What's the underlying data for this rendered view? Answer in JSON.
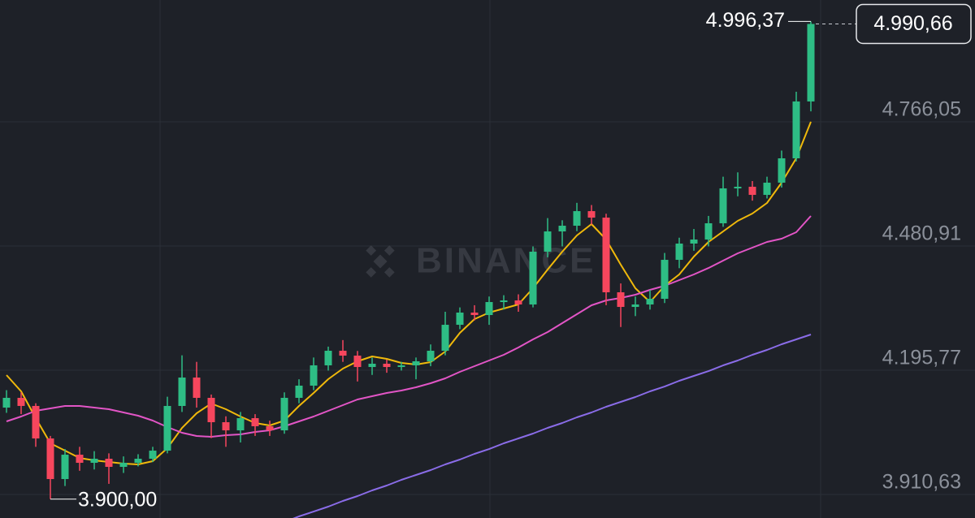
{
  "chart_data": {
    "type": "candlestick",
    "watermark": "BINANCE",
    "up_color": "#2ebd85",
    "down_color": "#f6465d",
    "open": [
      4110.0,
      4132.4,
      4113.8,
      4039.2,
      3946.0,
      4001.9,
      3983.3,
      3992.6,
      3974.0,
      3983.3,
      3992.6,
      4011.2,
      4113.8,
      4179.0,
      4132.4,
      4076.5,
      4057.8,
      4085.8,
      4067.2,
      4057.8,
      4132.4,
      4160.4,
      4207.0,
      4240.5,
      4229.3,
      4203.2,
      4210.7,
      4203.2,
      4207.0,
      4216.3,
      4240.5,
      4300.1,
      4328.1,
      4322.5,
      4352.3,
      4356.0,
      4346.7,
      4467.9,
      4514.4,
      4527.5,
      4561.0,
      4546.1,
      4374.7,
      4341.1,
      4346.7,
      4359.8,
      4449.2,
      4486.5,
      4495.8,
      4533.1,
      4613.2,
      4616.9,
      4598.3,
      4626.3,
      4682.2,
      4812.7
    ],
    "high": [
      4150.0,
      4145.0,
      4120.0,
      4045.0,
      4015.0,
      4020.0,
      4010.0,
      4005.0,
      3998.0,
      4003.0,
      4020.0,
      4135.0,
      4230.0,
      4215.0,
      4140.0,
      4090.0,
      4100.0,
      4095.0,
      4080.0,
      4145.0,
      4175.0,
      4225.0,
      4250.0,
      4265.0,
      4240.0,
      4225.0,
      4220.0,
      4215.0,
      4225.0,
      4255.0,
      4330.0,
      4340.0,
      4345.0,
      4365.0,
      4368.0,
      4370.0,
      4480.0,
      4545.0,
      4540.0,
      4580.0,
      4575.0,
      4555.0,
      4395.0,
      4365.0,
      4380.0,
      4465.0,
      4500.0,
      4520.0,
      4550.0,
      4640.0,
      4650.0,
      4630.0,
      4640.0,
      4700.0,
      4835.0,
      4996.37
    ],
    "low": [
      4098.0,
      4095.0,
      4020.0,
      3900.0,
      3930.0,
      3965.0,
      3968.0,
      3935.0,
      3960.0,
      3975.0,
      3985.0,
      4005.0,
      4100.0,
      4110.0,
      4040.0,
      4020.0,
      4030.0,
      4045.0,
      4045.0,
      4050.0,
      4120.0,
      4150.0,
      4195.0,
      4215.0,
      4170.0,
      4185.0,
      4190.0,
      4195.0,
      4175.0,
      4205.0,
      4230.0,
      4290.0,
      4310.0,
      4300.0,
      4335.0,
      4330.0,
      4340.0,
      4455.0,
      4480.0,
      4515.0,
      4530.0,
      4345.0,
      4295.0,
      4320.0,
      4335.0,
      4350.0,
      4430.0,
      4470.0,
      4480.0,
      4525.0,
      4595.0,
      4585.0,
      4590.0,
      4615.0,
      4675.0,
      4790.0
    ],
    "close": [
      4132.4,
      4113.8,
      4039.2,
      3946.0,
      4001.9,
      3983.3,
      3992.6,
      3974.0,
      3983.3,
      3992.6,
      4011.2,
      4113.8,
      4179.0,
      4132.4,
      4076.5,
      4057.8,
      4085.8,
      4067.2,
      4057.8,
      4132.4,
      4160.4,
      4207.0,
      4240.5,
      4229.3,
      4203.2,
      4210.7,
      4203.2,
      4207.0,
      4216.3,
      4240.5,
      4300.1,
      4328.1,
      4322.5,
      4352.3,
      4356.0,
      4346.7,
      4467.9,
      4514.4,
      4527.5,
      4561.0,
      4546.1,
      4374.7,
      4341.1,
      4346.7,
      4359.8,
      4449.2,
      4486.5,
      4495.8,
      4533.1,
      4613.2,
      4616.9,
      4598.3,
      4626.3,
      4682.2,
      4812.7,
      4990.66
    ],
    "series": [
      {
        "color": "#f0b90b",
        "values": [
          4184.6,
          4147.3,
          4085.8,
          4028.0,
          4011.2,
          3994.4,
          3988.9,
          3985.1,
          3981.4,
          3979.6,
          3987.0,
          4016.8,
          4063.2,
          4097.0,
          4119.3,
          4106.3,
          4089.5,
          4074.6,
          4069.0,
          4080.2,
          4113.8,
          4143.6,
          4175.3,
          4199.5,
          4216.3,
          4227.4,
          4221.8,
          4212.5,
          4208.8,
          4214.4,
          4238.6,
          4281.5,
          4313.2,
          4328.1,
          4337.4,
          4346.7,
          4384.0,
          4426.9,
          4467.9,
          4505.1,
          4531.2,
          4495.8,
          4438.0,
          4384.0,
          4352.3,
          4389.6,
          4415.6,
          4456.7,
          4490.2,
          4514.4,
          4538.7,
          4555.4,
          4579.7,
          4626.3,
          4682.2,
          4766.1
        ]
      },
      {
        "color": "#e255c6",
        "values": [
          4078.3,
          4089.5,
          4102.6,
          4108.2,
          4113.8,
          4113.8,
          4110.0,
          4106.3,
          4098.8,
          4091.4,
          4080.2,
          4065.3,
          4052.3,
          4044.8,
          4042.9,
          4046.7,
          4048.5,
          4054.1,
          4057.8,
          4067.2,
          4078.3,
          4089.5,
          4102.6,
          4115.6,
          4128.6,
          4136.1,
          4143.6,
          4149.1,
          4156.6,
          4165.9,
          4177.1,
          4192.0,
          4205.1,
          4218.1,
          4231.2,
          4248.0,
          4266.6,
          4283.4,
          4303.9,
          4324.4,
          4344.9,
          4356.0,
          4361.6,
          4369.1,
          4380.3,
          4389.6,
          4402.6,
          4415.6,
          4430.5,
          4447.3,
          4464.1,
          4477.2,
          4490.2,
          4497.6,
          4512.6,
          4549.9
        ]
      },
      {
        "color": "#8a6ce8",
        "values": [
          null,
          null,
          null,
          null,
          null,
          null,
          null,
          null,
          null,
          null,
          null,
          null,
          null,
          null,
          null,
          null,
          null,
          null,
          null,
          3847.2,
          3860.3,
          3871.4,
          3882.6,
          3895.7,
          3906.9,
          3919.9,
          3931.1,
          3944.2,
          3955.3,
          3966.5,
          3979.6,
          3990.7,
          4003.8,
          4014.9,
          4028.0,
          4039.2,
          4050.4,
          4063.4,
          4074.6,
          4087.7,
          4098.8,
          4111.9,
          4123.1,
          4134.2,
          4147.3,
          4158.4,
          4171.5,
          4182.7,
          4193.8,
          4206.9,
          4218.1,
          4231.2,
          4242.4,
          4255.4,
          4266.6,
          4277.8
        ]
      }
    ],
    "ylim": [
      3856.6,
      5045.6
    ],
    "yticks": [
      {
        "value": 3910.63,
        "label": "3.910,63"
      },
      {
        "value": 4195.77,
        "label": "4.195,77"
      },
      {
        "value": 4480.91,
        "label": "4.480,91"
      },
      {
        "value": 4766.05,
        "label": "4.766,05"
      }
    ],
    "grid": true,
    "max_label": {
      "value": 4996.37,
      "label": "4.996,37"
    },
    "min_label": {
      "value": 3900.0,
      "label": "3.900,00"
    },
    "last_price": {
      "value": 4990.66,
      "label": "4.990,66"
    }
  }
}
